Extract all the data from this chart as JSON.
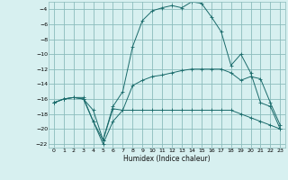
{
  "xlabel": "Humidex (Indice chaleur)",
  "bg_color": "#d7f0f0",
  "grid_color": "#8bbcbc",
  "line_color": "#1a6b6b",
  "xlim": [
    -0.5,
    23.5
  ],
  "ylim": [
    -22.5,
    -3.0
  ],
  "xticks": [
    0,
    1,
    2,
    3,
    4,
    5,
    6,
    7,
    8,
    9,
    10,
    11,
    12,
    13,
    14,
    15,
    16,
    17,
    18,
    19,
    20,
    21,
    22,
    23
  ],
  "yticks": [
    -22,
    -20,
    -18,
    -16,
    -14,
    -12,
    -10,
    -8,
    -6,
    -4
  ],
  "line1_x": [
    0,
    1,
    2,
    3,
    4,
    5,
    6,
    7,
    8,
    9,
    10,
    11,
    12,
    13,
    14,
    15,
    16,
    17,
    18,
    19,
    20,
    21,
    22,
    23
  ],
  "line1_y": [
    -16.5,
    -16,
    -15.8,
    -16,
    -17.5,
    -21.5,
    -17.3,
    -17.5,
    -17.5,
    -17.5,
    -17.5,
    -17.5,
    -17.5,
    -17.5,
    -17.5,
    -17.5,
    -17.5,
    -17.5,
    -17.5,
    -18,
    -18.5,
    -19,
    -19.5,
    -20
  ],
  "line2_x": [
    0,
    1,
    2,
    3,
    4,
    5,
    6,
    7,
    8,
    9,
    10,
    11,
    12,
    13,
    14,
    15,
    16,
    17,
    18,
    19,
    20,
    21,
    22,
    23
  ],
  "line2_y": [
    -16.5,
    -16,
    -15.8,
    -15.8,
    -19,
    -21.5,
    -17,
    -15,
    -9,
    -5.5,
    -4.2,
    -3.8,
    -3.5,
    -3.8,
    -3,
    -3.2,
    -5,
    -7,
    -11.5,
    -10,
    -12.5,
    -16.5,
    -17,
    -20
  ],
  "line3_x": [
    0,
    1,
    2,
    3,
    4,
    5,
    6,
    7,
    8,
    9,
    10,
    11,
    12,
    13,
    14,
    15,
    16,
    17,
    18,
    19,
    20,
    21,
    22,
    23
  ],
  "line3_y": [
    -16.5,
    -16,
    -15.8,
    -16,
    -19,
    -22,
    -19,
    -17.5,
    -14.2,
    -13.5,
    -13,
    -12.8,
    -12.5,
    -12.2,
    -12,
    -12,
    -12,
    -12,
    -12.5,
    -13.5,
    -13,
    -13.3,
    -16.5,
    -19.5
  ]
}
